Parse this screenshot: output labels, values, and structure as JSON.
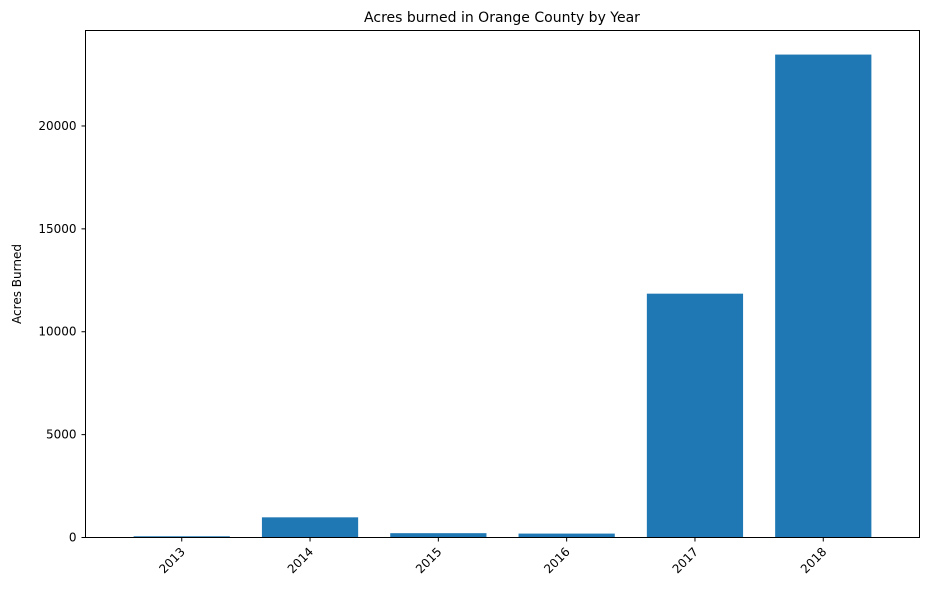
{
  "chart_data": {
    "type": "bar",
    "title": "Acres burned in Orange County by Year",
    "xlabel": "",
    "ylabel": "Acres Burned",
    "categories": [
      "2013",
      "2014",
      "2015",
      "2016",
      "2017",
      "2018"
    ],
    "values": [
      60,
      980,
      210,
      190,
      11850,
      23470
    ],
    "ylim": [
      0,
      24640
    ],
    "yticks": [
      0,
      5000,
      10000,
      15000,
      20000
    ],
    "ytick_labels": [
      "0",
      "5000",
      "10000",
      "15000",
      "20000"
    ],
    "xtick_rotation": "45°",
    "grid": false,
    "bar_color": "#1f77b4"
  }
}
